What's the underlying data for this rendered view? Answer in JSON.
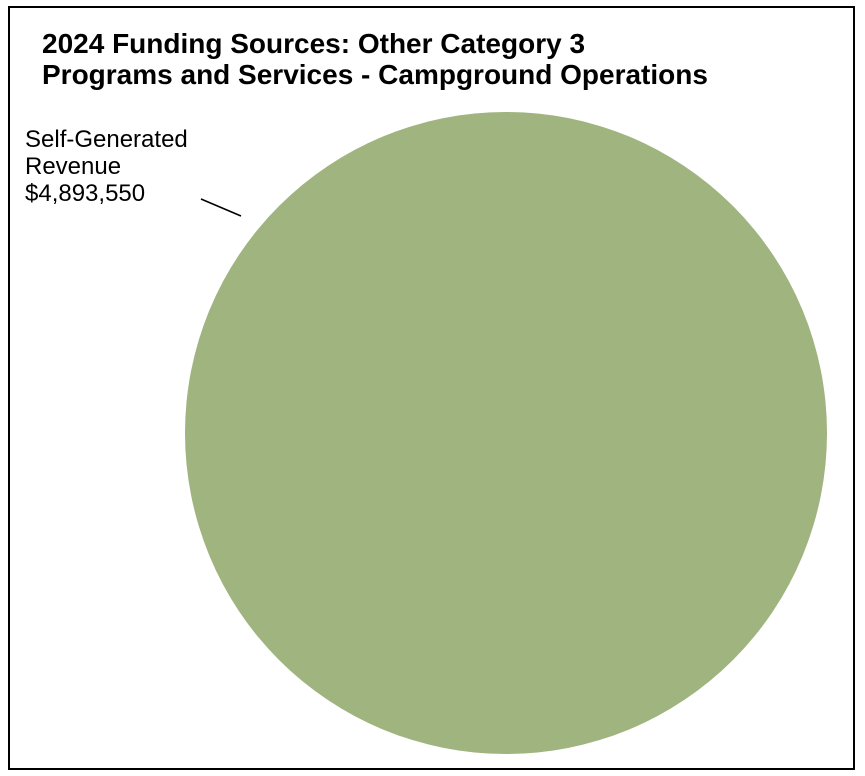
{
  "chart_data": {
    "type": "pie",
    "title_lines": [
      "2024 Funding Sources: Other Category 3",
      "Programs and Services - Campground Operations"
    ],
    "categories": [
      "Self-Generated Revenue"
    ],
    "values": [
      4893550
    ],
    "labels": [
      {
        "name_lines": [
          "Self-Generated",
          "Revenue"
        ],
        "value_text": "$4,893,550"
      }
    ],
    "colors": [
      "#9fb47e"
    ],
    "legend": "none"
  }
}
